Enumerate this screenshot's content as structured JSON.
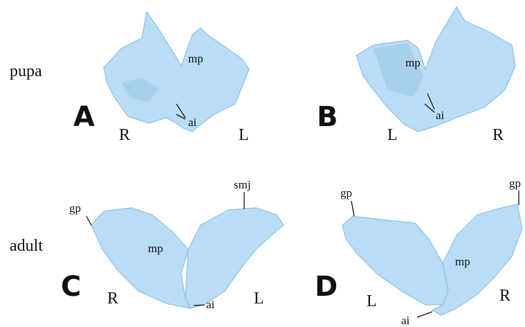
{
  "rows": [
    {
      "label": "pupa"
    },
    {
      "label": "adult"
    }
  ],
  "panels": [
    {
      "letter": "A",
      "sides": [
        "R",
        "L"
      ],
      "annotations": [
        "mp",
        "ai"
      ]
    },
    {
      "letter": "B",
      "sides": [
        "L",
        "R"
      ],
      "annotations": [
        "mp",
        "ai"
      ]
    },
    {
      "letter": "C",
      "sides": [
        "R",
        "L"
      ],
      "annotations": [
        "gp",
        "mp",
        "smj",
        "ai"
      ]
    },
    {
      "letter": "D",
      "sides": [
        "L",
        "R"
      ],
      "annotations": [
        "gp",
        "gp",
        "mp",
        "ai"
      ]
    }
  ]
}
